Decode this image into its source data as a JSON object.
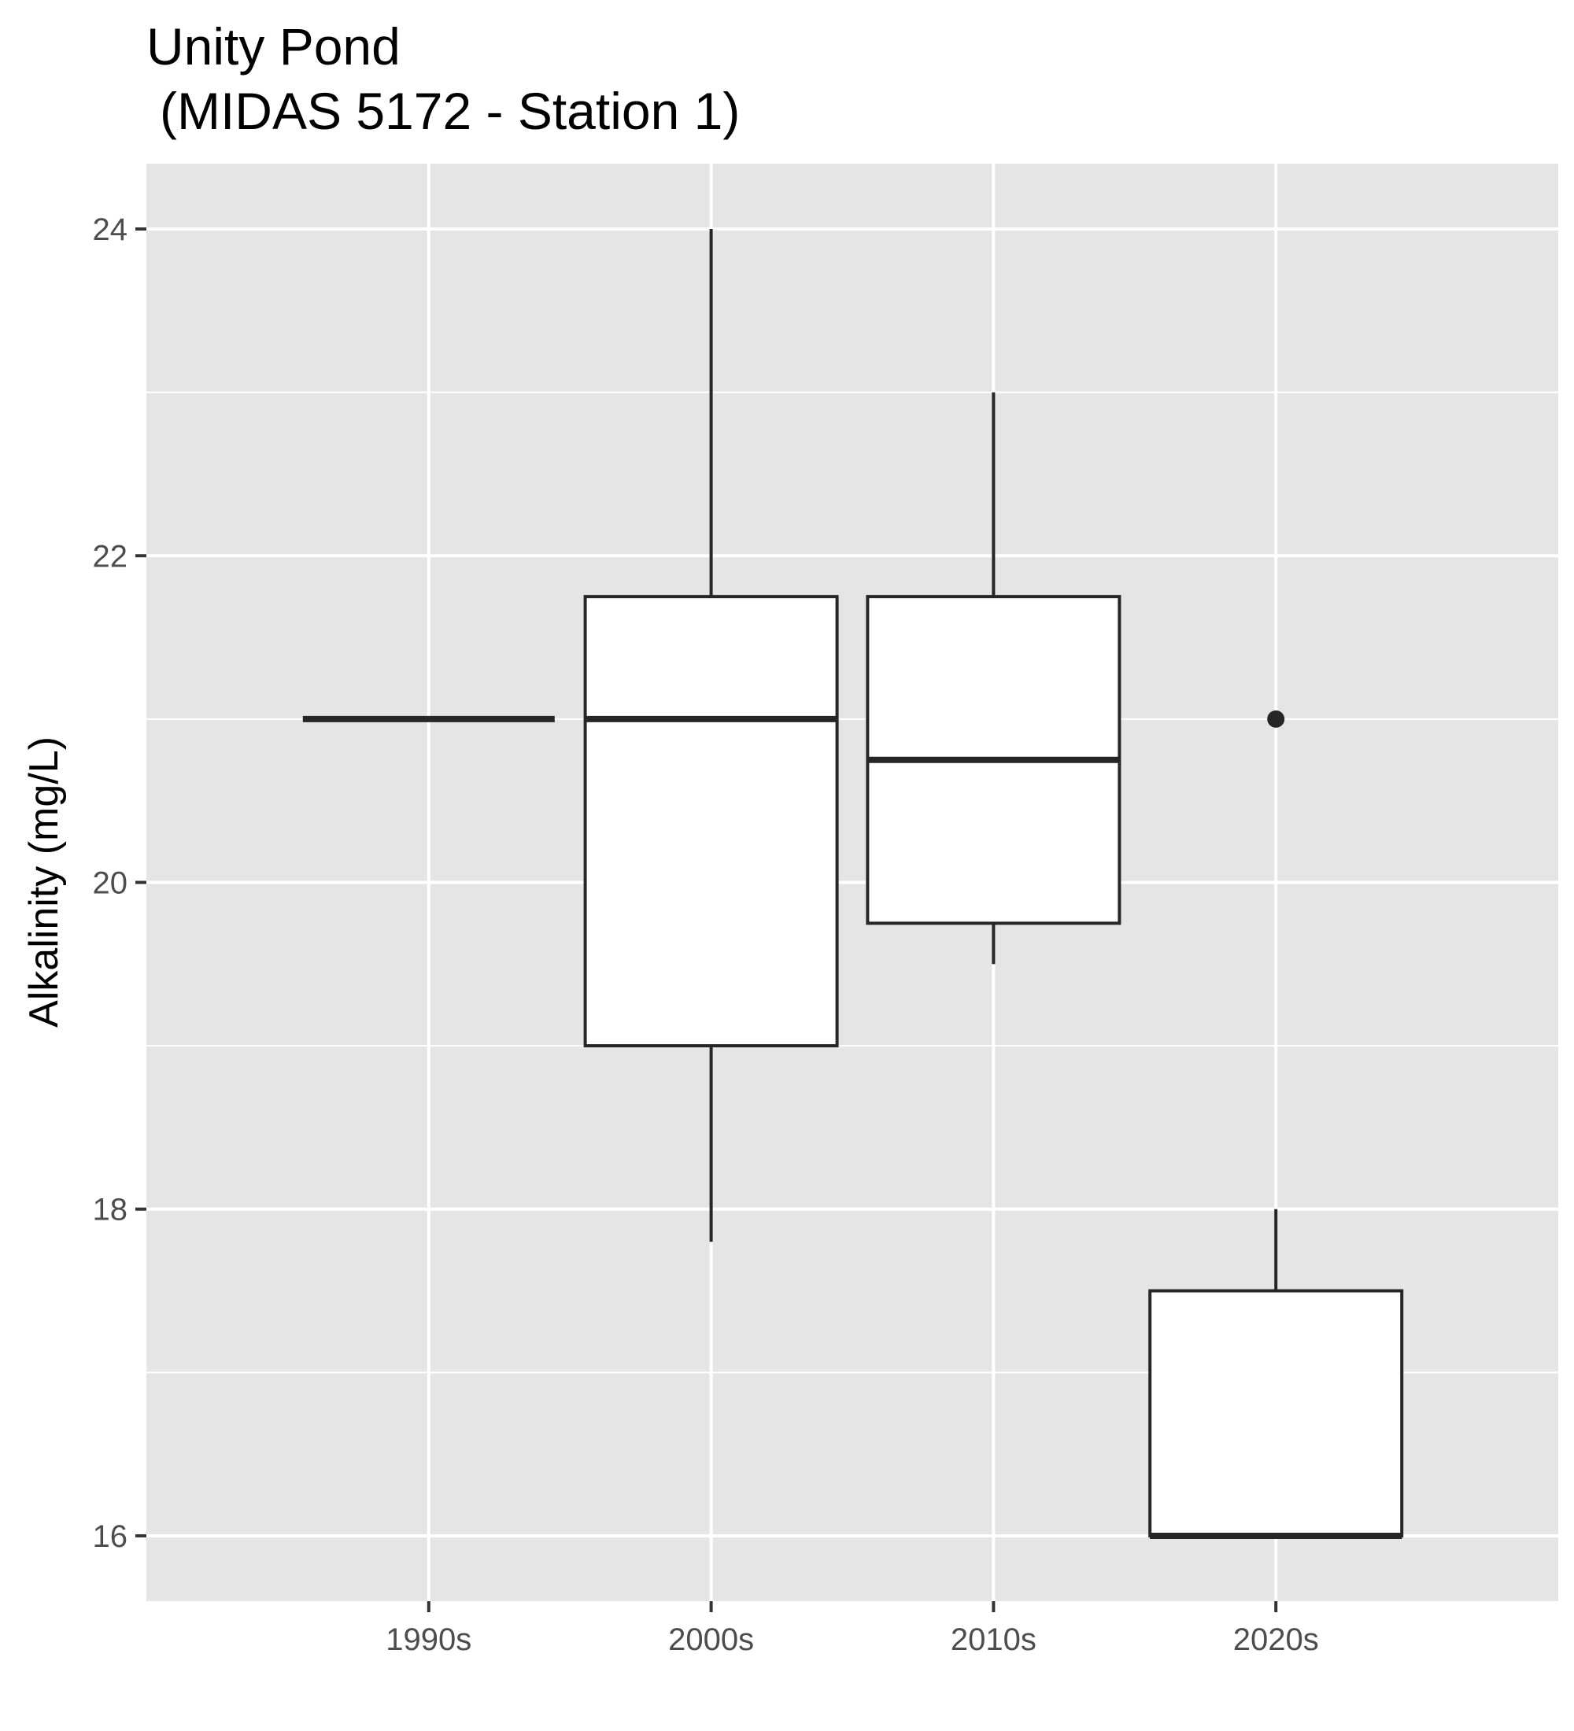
{
  "chart_data": {
    "type": "boxplot",
    "title_line1": "Unity Pond",
    "title_line2": "(MIDAS 5172 - Station 1)",
    "xlabel": "",
    "ylabel": "Alkalinity (mg/L)",
    "ylim": [
      15.6,
      24.4
    ],
    "yticks": [
      16,
      18,
      20,
      22,
      24
    ],
    "ytick_labels": [
      "16",
      "18",
      "20",
      "22",
      "24"
    ],
    "grid": true,
    "categories": [
      "1990s",
      "2000s",
      "2010s",
      "2020s"
    ],
    "boxes": [
      {
        "category": "1990s",
        "min": 21,
        "q1": 21,
        "median": 21,
        "q3": 21,
        "max": 21,
        "outliers": []
      },
      {
        "category": "2000s",
        "min": 17.8,
        "q1": 19.0,
        "median": 21.0,
        "q3": 21.75,
        "max": 24.0,
        "outliers": []
      },
      {
        "category": "2010s",
        "min": 19.5,
        "q1": 19.75,
        "median": 20.75,
        "q3": 21.75,
        "max": 23.0,
        "outliers": []
      },
      {
        "category": "2020s",
        "min": 16.0,
        "q1": 16.0,
        "median": 16.0,
        "q3": 17.5,
        "max": 18.0,
        "outliers": [
          21.0
        ]
      }
    ],
    "colors": {
      "panel": "#e5e5e5",
      "grid": "#ffffff",
      "box_fill": "#ffffff",
      "box_line": "#262626",
      "tick_text": "#4d4d4d"
    }
  }
}
